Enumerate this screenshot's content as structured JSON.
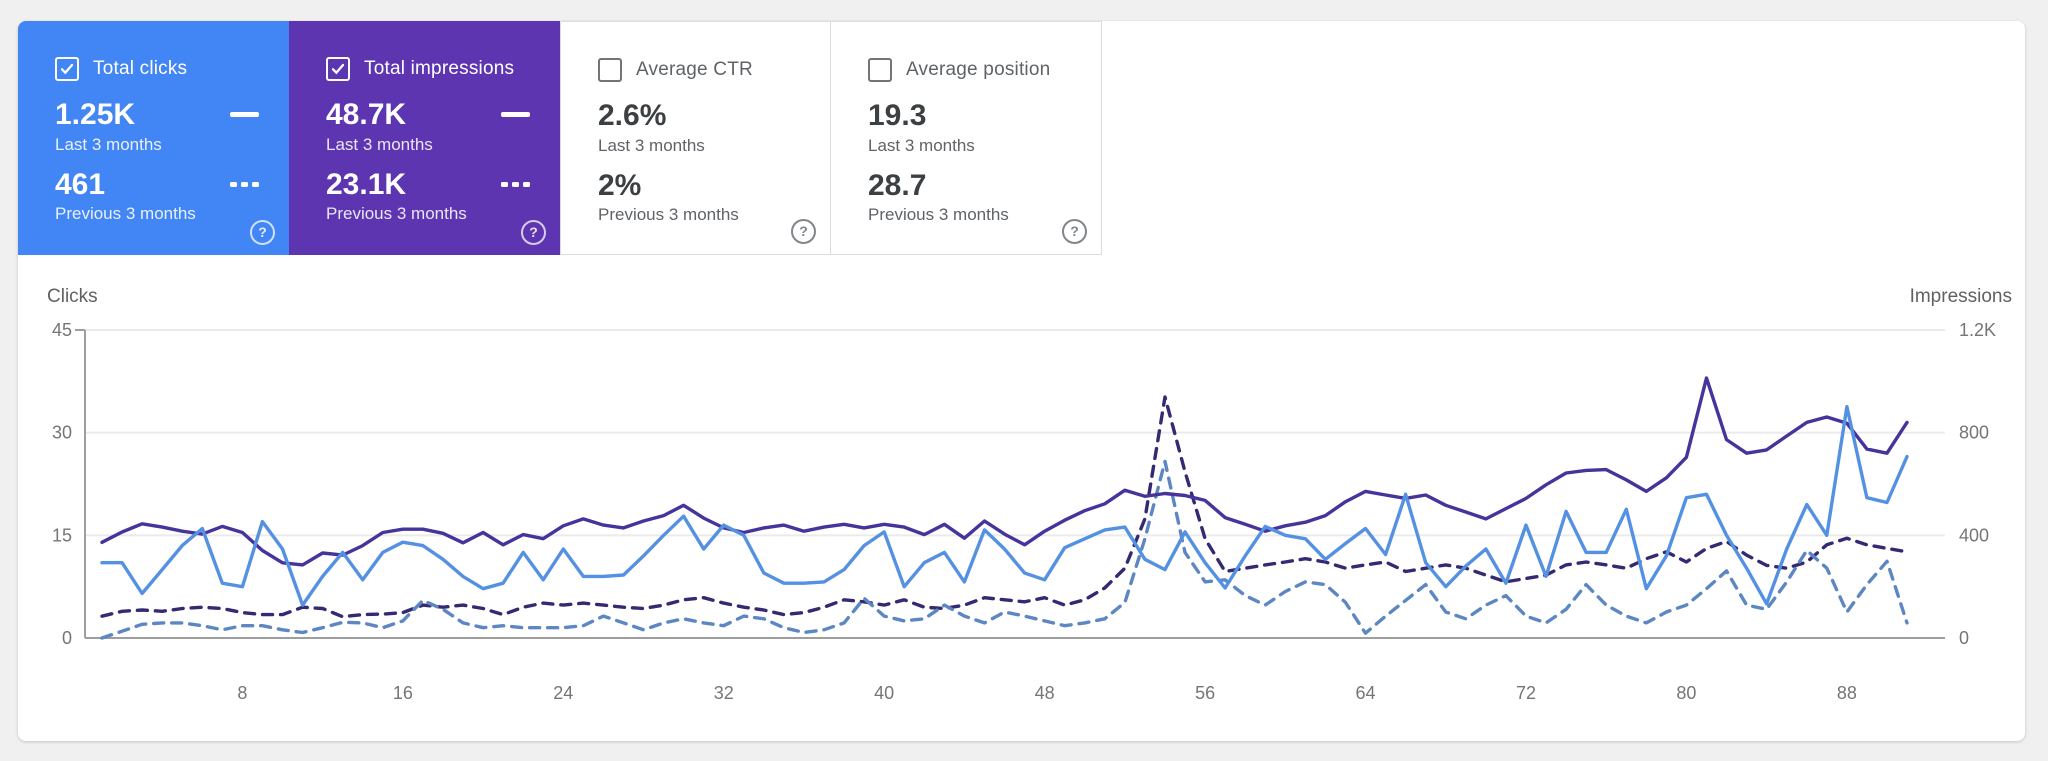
{
  "page": {
    "background": "#f0f0f0",
    "panel_background": "#ffffff"
  },
  "icons": {
    "help": "?"
  },
  "metrics": [
    {
      "label": "Total clicks",
      "selected": true,
      "checked": true,
      "color": "#4285f4",
      "value_last": "1.25K",
      "period_last": "Last 3 months",
      "value_prev": "461",
      "period_prev": "Previous 3 months"
    },
    {
      "label": "Total impressions",
      "selected": true,
      "checked": true,
      "color": "#5e35b1",
      "value_last": "48.7K",
      "period_last": "Last 3 months",
      "value_prev": "23.1K",
      "period_prev": "Previous 3 months"
    },
    {
      "label": "Average CTR",
      "selected": false,
      "checked": false,
      "color": "#ffffff",
      "value_last": "2.6%",
      "period_last": "Last 3 months",
      "value_prev": "2%",
      "period_prev": "Previous 3 months"
    },
    {
      "label": "Average position",
      "selected": false,
      "checked": false,
      "color": "#ffffff",
      "value_last": "19.3",
      "period_last": "Last 3 months",
      "value_prev": "28.7",
      "period_prev": "Previous 3 months"
    }
  ],
  "chart_data": {
    "type": "line",
    "left_axis": {
      "title": "Clicks",
      "range": [
        0,
        45
      ],
      "ticks": [
        0,
        15,
        30,
        45
      ],
      "tick_labels": [
        "0",
        "15",
        "30",
        "45"
      ]
    },
    "right_axis": {
      "title": "Impressions",
      "range": [
        0,
        1200
      ],
      "ticks": [
        0,
        400,
        800,
        1200
      ],
      "tick_labels": [
        "0",
        "400",
        "800",
        "1.2K"
      ]
    },
    "x_axis": {
      "days": 91,
      "tick_days": [
        8,
        16,
        24,
        32,
        40,
        48,
        56,
        64,
        72,
        80,
        88
      ],
      "tick_labels": [
        "8",
        "16",
        "24",
        "32",
        "40",
        "48",
        "56",
        "64",
        "72",
        "80",
        "88"
      ]
    },
    "grid": true,
    "series": [
      {
        "name": "Impressions - previous 3 months",
        "axis": "right",
        "style": "dashed",
        "color": "#352a72",
        "values": [
          85,
          104,
          109,
          104,
          115,
          120,
          115,
          99,
          91,
          91,
          120,
          115,
          83,
          91,
          93,
          99,
          128,
          120,
          128,
          115,
          91,
          120,
          136,
          128,
          136,
          128,
          120,
          115,
          128,
          149,
          157,
          136,
          120,
          109,
          91,
          99,
          120,
          149,
          141,
          128,
          149,
          120,
          115,
          128,
          157,
          149,
          141,
          157,
          128,
          149,
          195,
          272,
          464,
          939,
          648,
          387,
          259,
          272,
          285,
          296,
          309,
          296,
          272,
          285,
          296,
          259,
          272,
          285,
          272,
          245,
          219,
          232,
          245,
          285,
          296,
          285,
          272,
          309,
          336,
          296,
          349,
          376,
          323,
          283,
          272,
          296,
          363,
          389,
          363,
          349,
          336
        ]
      },
      {
        "name": "Clicks - previous 3 months",
        "axis": "left",
        "style": "dashed",
        "color": "#5d87c3",
        "values": [
          0,
          1,
          2,
          2.2,
          2.2,
          1.8,
          1.2,
          1.8,
          1.8,
          1.2,
          0.8,
          1.5,
          2.3,
          2.2,
          1.5,
          2.5,
          5.5,
          4.2,
          2.2,
          1.5,
          1.8,
          1.5,
          1.5,
          1.5,
          1.8,
          3.2,
          2.2,
          1.2,
          2.2,
          2.8,
          2.2,
          1.8,
          3.2,
          2.8,
          1.5,
          0.8,
          1.2,
          2.2,
          5.8,
          3.2,
          2.5,
          2.8,
          4.8,
          3.2,
          2.2,
          3.8,
          3.2,
          2.5,
          1.8,
          2.2,
          2.8,
          5.2,
          14.5,
          25.8,
          12.5,
          8.2,
          8.5,
          6.2,
          4.8,
          6.8,
          8.2,
          7.8,
          5.2,
          0.7,
          3.2,
          5.5,
          7.8,
          3.8,
          2.8,
          4.8,
          6.2,
          3.2,
          2.2,
          4.2,
          7.8,
          4.8,
          3.2,
          2.2,
          3.8,
          4.8,
          7.2,
          9.8,
          4.8,
          4.2,
          8.2,
          12.8,
          10.2,
          3.8,
          7.8,
          11.2,
          2.2
        ]
      },
      {
        "name": "Impressions - last 3 months",
        "axis": "right",
        "style": "solid",
        "color": "#46339c",
        "values": [
          373,
          413,
          445,
          432,
          416,
          405,
          435,
          411,
          341,
          293,
          285,
          331,
          323,
          360,
          411,
          424,
          424,
          408,
          371,
          411,
          363,
          403,
          387,
          437,
          464,
          440,
          429,
          456,
          477,
          517,
          467,
          429,
          411,
          429,
          440,
          416,
          432,
          443,
          429,
          443,
          432,
          403,
          443,
          389,
          456,
          405,
          363,
          416,
          459,
          496,
          523,
          576,
          552,
          563,
          555,
          536,
          469,
          443,
          416,
          437,
          451,
          477,
          531,
          571,
          557,
          544,
          557,
          517,
          491,
          464,
          504,
          544,
          597,
          643,
          653,
          656,
          616,
          571,
          624,
          704,
          1013,
          773,
          720,
          733,
          787,
          840,
          861,
          837,
          736,
          720,
          840
        ]
      },
      {
        "name": "Clicks - last 3 months",
        "axis": "left",
        "style": "solid",
        "color": "#5491e2",
        "values": [
          11,
          11,
          6.5,
          10,
          13.5,
          16,
          8,
          7.5,
          17,
          13,
          4.8,
          9,
          12.5,
          8.5,
          12.5,
          14,
          13.5,
          11.5,
          9,
          7.2,
          8,
          12.5,
          8.5,
          13,
          9,
          9,
          9.2,
          12,
          15,
          17.8,
          13,
          16.5,
          15,
          9.5,
          8,
          8,
          8.2,
          10,
          13.5,
          15.5,
          7.5,
          11,
          12.5,
          8.2,
          15.8,
          13,
          9.5,
          8.5,
          13.2,
          14.5,
          15.8,
          16.2,
          11.5,
          10,
          15.5,
          11,
          7.3,
          12,
          16.3,
          15,
          14.5,
          11.5,
          13.8,
          16,
          12.2,
          21,
          11,
          7.5,
          10.5,
          13,
          8,
          16.5,
          9,
          18.5,
          12.5,
          12.5,
          18.8,
          7.2,
          12,
          20.5,
          21,
          15,
          10.2,
          5,
          13,
          19.5,
          15,
          33.8,
          20.5,
          19.8,
          26.5
        ]
      }
    ]
  }
}
